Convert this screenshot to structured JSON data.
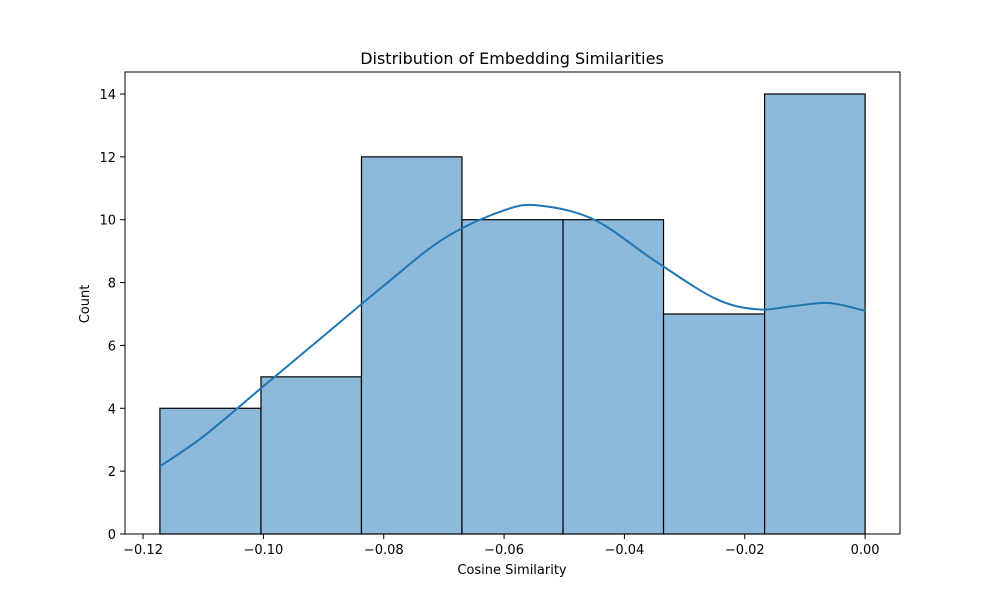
{
  "chart_data": {
    "type": "bar",
    "subtype": "histogram",
    "title": "Distribution of Embedding Similarities",
    "xlabel": "Cosine Similarity",
    "ylabel": "Count",
    "bin_edges": [
      -0.1172,
      -0.1004,
      -0.0837,
      -0.067,
      -0.0502,
      -0.0335,
      -0.0167,
      0.0
    ],
    "values": [
      4,
      5,
      12,
      10,
      10,
      7,
      14
    ],
    "xlim": [
      -0.123,
      0.0058
    ],
    "ylim": [
      0,
      14.7
    ],
    "xticks": [
      -0.12,
      -0.1,
      -0.08,
      -0.06,
      -0.04,
      -0.02,
      0.0
    ],
    "xtick_labels": [
      "−0.12",
      "−0.10",
      "−0.08",
      "−0.06",
      "−0.04",
      "−0.02",
      "0.00"
    ],
    "yticks": [
      0,
      2,
      4,
      6,
      8,
      10,
      12,
      14
    ],
    "ytick_labels": [
      "0",
      "2",
      "4",
      "6",
      "8",
      "10",
      "12",
      "14"
    ],
    "kde": {
      "x": [
        -0.1172,
        -0.11,
        -0.1,
        -0.09,
        -0.08,
        -0.07,
        -0.06,
        -0.054,
        -0.045,
        -0.035,
        -0.025,
        -0.018,
        -0.012,
        -0.006,
        0.0
      ],
      "y": [
        2.15,
        3.1,
        4.7,
        6.3,
        7.9,
        9.4,
        10.3,
        10.45,
        10.0,
        8.7,
        7.5,
        7.15,
        7.25,
        7.35,
        7.1
      ]
    },
    "grid": false,
    "colors": {
      "bar_fill": "#8db9da",
      "bar_edge": "#000000",
      "kde_line": "#1f77b4"
    }
  }
}
